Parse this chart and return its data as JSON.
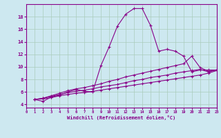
{
  "xlabel": "Windchill (Refroidissement éolien,°C)",
  "bg_color": "#cde8f0",
  "line_color": "#880088",
  "grid_color": "#aaccbb",
  "xlim": [
    0,
    23
  ],
  "ylim": [
    3.5,
    20
  ],
  "yticks": [
    4,
    6,
    8,
    10,
    12,
    14,
    16,
    18
  ],
  "xticks": [
    0,
    1,
    2,
    3,
    4,
    5,
    6,
    7,
    8,
    9,
    10,
    11,
    12,
    13,
    14,
    15,
    16,
    17,
    18,
    19,
    20,
    21,
    22,
    23
  ],
  "line1_x": [
    1,
    2,
    3,
    4,
    5,
    6,
    7,
    8,
    9,
    10,
    11,
    12,
    13,
    14,
    15,
    16,
    17,
    18,
    19,
    20,
    21,
    22,
    23
  ],
  "line1_y": [
    4.8,
    4.5,
    5.2,
    5.5,
    6.0,
    6.4,
    6.1,
    6.0,
    10.2,
    13.2,
    16.5,
    18.4,
    19.3,
    19.3,
    16.6,
    12.5,
    12.8,
    12.5,
    11.7,
    9.2,
    9.5,
    9.5,
    9.5
  ],
  "line2_x": [
    1,
    2,
    3,
    4,
    5,
    6,
    7,
    8,
    9,
    10,
    11,
    12,
    13,
    14,
    15,
    16,
    17,
    18,
    19,
    20,
    21,
    22,
    23
  ],
  "line2_y": [
    4.8,
    5.0,
    5.4,
    5.8,
    6.2,
    6.5,
    6.7,
    7.0,
    7.3,
    7.7,
    8.0,
    8.4,
    8.7,
    9.0,
    9.3,
    9.6,
    9.9,
    10.2,
    10.5,
    11.7,
    9.9,
    9.3,
    9.5
  ],
  "line3_x": [
    1,
    2,
    3,
    4,
    5,
    6,
    7,
    8,
    9,
    10,
    11,
    12,
    13,
    14,
    15,
    16,
    17,
    18,
    19,
    20,
    21,
    22,
    23
  ],
  "line3_y": [
    4.8,
    5.0,
    5.3,
    5.6,
    5.9,
    6.1,
    6.3,
    6.5,
    6.8,
    7.0,
    7.2,
    7.5,
    7.8,
    8.0,
    8.3,
    8.5,
    8.7,
    9.0,
    9.2,
    9.4,
    9.6,
    9.2,
    9.5
  ],
  "line4_x": [
    1,
    2,
    3,
    4,
    5,
    6,
    7,
    8,
    9,
    10,
    11,
    12,
    13,
    14,
    15,
    16,
    17,
    18,
    19,
    20,
    21,
    22,
    23
  ],
  "line4_y": [
    4.8,
    4.9,
    5.1,
    5.4,
    5.6,
    5.8,
    5.9,
    6.1,
    6.3,
    6.5,
    6.7,
    6.9,
    7.1,
    7.3,
    7.5,
    7.7,
    7.9,
    8.1,
    8.3,
    8.5,
    8.7,
    9.0,
    9.4
  ]
}
